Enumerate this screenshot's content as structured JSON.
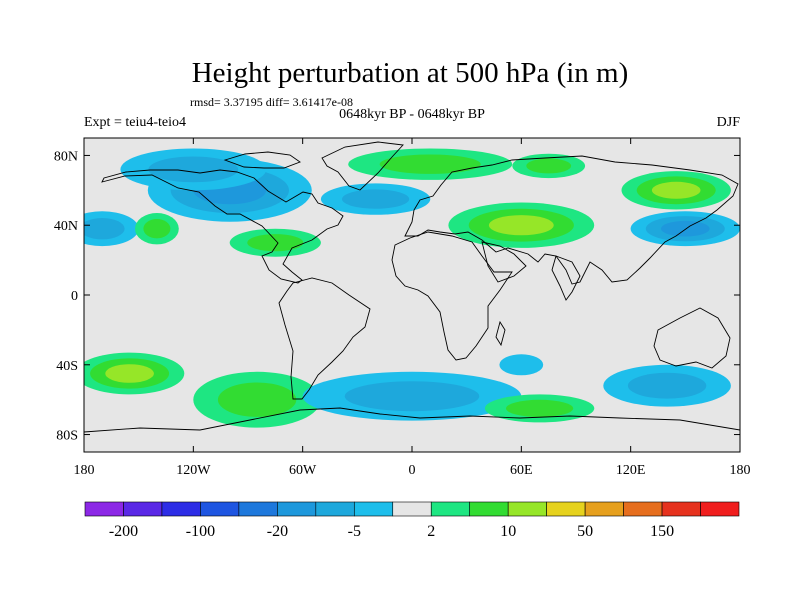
{
  "chart_data": {
    "type": "heatmap",
    "title": "Height perturbation at 500 hPa (in m)",
    "stats_text": "rmsd= 3.37195 diff= 3.61417e-08",
    "period_text": "0648kyr BP - 0648kyr BP",
    "experiment_text": "Expt = teiu4-teio4",
    "season": "DJF",
    "projection": "cylindrical-equidistant",
    "xlim": [
      -180,
      180
    ],
    "ylim": [
      -90,
      90
    ],
    "x_ticks": [
      {
        "value": -180,
        "label": "180"
      },
      {
        "value": -120,
        "label": "120W"
      },
      {
        "value": -60,
        "label": "60W"
      },
      {
        "value": 0,
        "label": "0"
      },
      {
        "value": 60,
        "label": "60E"
      },
      {
        "value": 120,
        "label": "120E"
      },
      {
        "value": 180,
        "label": "180"
      }
    ],
    "y_ticks": [
      {
        "value": 80,
        "label": "80N"
      },
      {
        "value": 40,
        "label": "40N"
      },
      {
        "value": 0,
        "label": "0"
      },
      {
        "value": -40,
        "label": "40S"
      },
      {
        "value": -80,
        "label": "80S"
      }
    ],
    "colorbar": {
      "boundaries": [
        -200,
        -150,
        -100,
        -50,
        -20,
        -10,
        -5,
        -2,
        2,
        5,
        10,
        20,
        50,
        100,
        150,
        200
      ],
      "colors": [
        "#8c28e6",
        "#5a28e6",
        "#2d2de6",
        "#1e55e1",
        "#1e78dc",
        "#1e98dc",
        "#1ea8dc",
        "#1ebeeb",
        "#e6e6e6",
        "#1ee682",
        "#32dc32",
        "#96e628",
        "#e6d21e",
        "#e6a01e",
        "#e66e1e",
        "#e6321e",
        "#f01e1e"
      ],
      "labels": [
        {
          "value": -200,
          "label": "-200"
        },
        {
          "value": -100,
          "label": "-100"
        },
        {
          "value": -20,
          "label": "-20"
        },
        {
          "value": -5,
          "label": "-5"
        },
        {
          "value": 2,
          "label": "2"
        },
        {
          "value": 10,
          "label": "10"
        },
        {
          "value": 50,
          "label": "50"
        },
        {
          "value": 150,
          "label": "150"
        }
      ]
    },
    "field_features": [
      {
        "lon": -100,
        "lat": 60,
        "value": -12,
        "rx": 45,
        "ry": 18
      },
      {
        "lon": -120,
        "lat": 72,
        "value": -10,
        "rx": 40,
        "ry": 12
      },
      {
        "lon": -20,
        "lat": 55,
        "value": -9,
        "rx": 30,
        "ry": 9
      },
      {
        "lon": -170,
        "lat": 38,
        "value": -9,
        "rx": 20,
        "ry": 10
      },
      {
        "lon": 150,
        "lat": 38,
        "value": -14,
        "rx": 30,
        "ry": 10
      },
      {
        "lon": 10,
        "lat": 75,
        "value": 9,
        "rx": 45,
        "ry": 9
      },
      {
        "lon": 60,
        "lat": 40,
        "value": 14,
        "rx": 40,
        "ry": 13
      },
      {
        "lon": 145,
        "lat": 60,
        "value": 13,
        "rx": 30,
        "ry": 11
      },
      {
        "lon": 75,
        "lat": 74,
        "value": 6,
        "rx": 20,
        "ry": 7
      },
      {
        "lon": -140,
        "lat": 38,
        "value": 6,
        "rx": 12,
        "ry": 9
      },
      {
        "lon": -75,
        "lat": 30,
        "value": 7,
        "rx": 25,
        "ry": 8
      },
      {
        "lon": -155,
        "lat": -45,
        "value": 11,
        "rx": 30,
        "ry": 12
      },
      {
        "lon": -85,
        "lat": -60,
        "value": 9,
        "rx": 35,
        "ry": 16
      },
      {
        "lon": 0,
        "lat": -58,
        "value": -8,
        "rx": 60,
        "ry": 14
      },
      {
        "lon": 140,
        "lat": -52,
        "value": -8,
        "rx": 35,
        "ry": 12
      },
      {
        "lon": 60,
        "lat": -40,
        "value": -5,
        "rx": 12,
        "ry": 6
      },
      {
        "lon": 70,
        "lat": -65,
        "value": 6,
        "rx": 30,
        "ry": 8
      }
    ]
  }
}
